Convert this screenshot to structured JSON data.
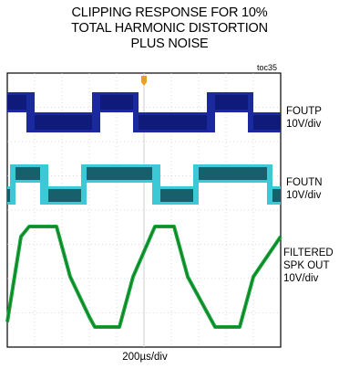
{
  "title_lines": [
    "CLIPPING RESPONSE FOR 10%",
    "TOTAL HARMONIC DISTORTION",
    "PLUS NOISE"
  ],
  "figure_id": "toc35",
  "xlabel": "200µs/div",
  "colors": {
    "foutp": "#1a2a9e",
    "foutn": "#3cc8d4",
    "foutn_dark": "#15606a",
    "filtered": "#1aa63a",
    "trigger": "#e8a020",
    "grid": "#cfcfcf"
  },
  "traces": [
    {
      "name": "FOUTP",
      "scale": "10V/div"
    },
    {
      "name": "FOUTN",
      "scale": "10V/div"
    },
    {
      "name": "FILTERED SPK OUT",
      "name_lines": [
        "FILTERED",
        "SPK OUT"
      ],
      "scale": "10V/div"
    }
  ],
  "chart_data": {
    "type": "line",
    "title": "CLIPPING RESPONSE FOR 10% TOTAL HARMONIC DISTORTION PLUS NOISE",
    "xlabel": "200µs/div",
    "divisions": {
      "x": 10,
      "y": 8
    },
    "grid": true,
    "x_unit": "div",
    "series": [
      {
        "name": "FOUTP",
        "scale": "10V/div",
        "type": "pwm",
        "points": [
          [
            0,
            1
          ],
          [
            0.7,
            1
          ],
          [
            1,
            0
          ],
          [
            2,
            0
          ],
          [
            3.1,
            0
          ],
          [
            3.4,
            1
          ],
          [
            4.6,
            1
          ],
          [
            4.8,
            0
          ],
          [
            6,
            0
          ],
          [
            7.3,
            0
          ],
          [
            7.6,
            1
          ],
          [
            8.8,
            1
          ],
          [
            9,
            0
          ],
          [
            10,
            0
          ]
        ]
      },
      {
        "name": "FOUTN",
        "scale": "10V/div",
        "type": "pwm",
        "points": [
          [
            0,
            0
          ],
          [
            0.1,
            0
          ],
          [
            0.3,
            1
          ],
          [
            1.2,
            1
          ],
          [
            1.5,
            0
          ],
          [
            2.7,
            0
          ],
          [
            2.9,
            1
          ],
          [
            5.3,
            1
          ],
          [
            5.6,
            0
          ],
          [
            6.8,
            0
          ],
          [
            7,
            1
          ],
          [
            9.5,
            1
          ],
          [
            9.7,
            0
          ],
          [
            10,
            0
          ]
        ]
      },
      {
        "name": "FILTERED SPK OUT",
        "scale": "10V/div",
        "type": "clipped-sine",
        "period_div": 5.2,
        "points": [
          [
            0,
            -0.9
          ],
          [
            0.5,
            0.8
          ],
          [
            0.8,
            1
          ],
          [
            1.8,
            1
          ],
          [
            2.3,
            0
          ],
          [
            3,
            -0.8
          ],
          [
            3.2,
            -1
          ],
          [
            4.1,
            -1
          ],
          [
            4.6,
            0
          ],
          [
            5.4,
            1
          ],
          [
            6.1,
            1
          ],
          [
            6.6,
            0
          ],
          [
            7.4,
            -0.8
          ],
          [
            7.6,
            -1
          ],
          [
            8.5,
            -1
          ],
          [
            9,
            0
          ],
          [
            10,
            0.8
          ]
        ]
      }
    ]
  }
}
